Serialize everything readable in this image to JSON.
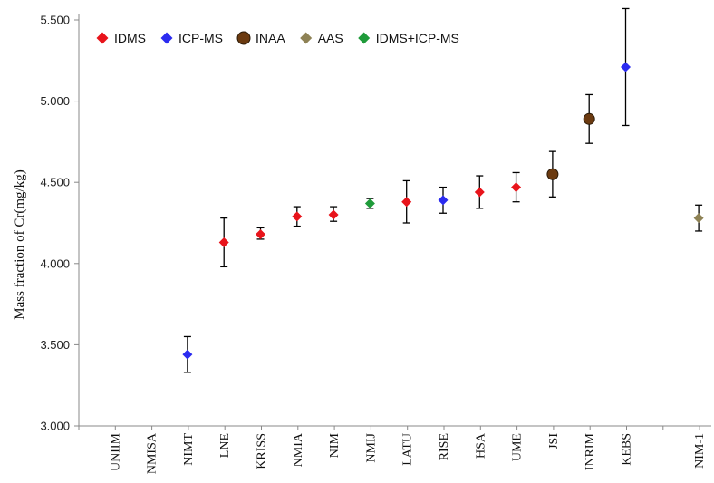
{
  "chart_data": {
    "type": "scatter",
    "title": "",
    "xlabel": "",
    "ylabel": "Mass fraction of Cr(mg/kg)",
    "ylim": [
      3.0,
      5.5
    ],
    "yticks": [
      "3.000",
      "3.500",
      "4.000",
      "4.500",
      "5.000",
      "5.500"
    ],
    "ytick_values": [
      3.0,
      3.5,
      4.0,
      4.5,
      5.0,
      5.5
    ],
    "grid": false,
    "legend_position": "top-left",
    "categories": [
      "UNIIM",
      "NMISA",
      "NIMT",
      "LNE",
      "KRISS",
      "NMIA",
      "NIM",
      "NMIJ",
      "LATU",
      "RISE",
      "HSA",
      "UME",
      "JSI",
      "INRIM",
      "KEBS",
      "NIM-1"
    ],
    "category_slots": [
      1,
      2,
      3,
      4,
      5,
      6,
      7,
      8,
      9,
      10,
      11,
      12,
      13,
      14,
      15,
      17
    ],
    "methods": [
      {
        "name": "IDMS",
        "color": "#e8141b",
        "shape": "diamond"
      },
      {
        "name": "ICP-MS",
        "color": "#2b2bf0",
        "shape": "diamond"
      },
      {
        "name": "INAA",
        "color": "#6b3a10",
        "shape": "circle"
      },
      {
        "name": "AAS",
        "color": "#8e8255",
        "shape": "diamond"
      },
      {
        "name": "IDMS+ICP-MS",
        "color": "#1f9b3a",
        "shape": "diamond"
      }
    ],
    "points": [
      {
        "lab": "NIMT",
        "method": "ICP-MS",
        "value": 3.44,
        "low": 3.33,
        "high": 3.55
      },
      {
        "lab": "LNE",
        "method": "IDMS",
        "value": 4.13,
        "low": 3.98,
        "high": 4.28
      },
      {
        "lab": "KRISS",
        "method": "IDMS",
        "value": 4.18,
        "low": 4.15,
        "high": 4.22
      },
      {
        "lab": "NMIA",
        "method": "IDMS",
        "value": 4.29,
        "low": 4.23,
        "high": 4.35
      },
      {
        "lab": "NIM",
        "method": "IDMS",
        "value": 4.3,
        "low": 4.26,
        "high": 4.35
      },
      {
        "lab": "NMIJ",
        "method": "IDMS+ICP-MS",
        "value": 4.37,
        "low": 4.34,
        "high": 4.4
      },
      {
        "lab": "LATU",
        "method": "IDMS",
        "value": 4.38,
        "low": 4.25,
        "high": 4.51
      },
      {
        "lab": "RISE",
        "method": "ICP-MS",
        "value": 4.39,
        "low": 4.31,
        "high": 4.47
      },
      {
        "lab": "HSA",
        "method": "IDMS",
        "value": 4.44,
        "low": 4.34,
        "high": 4.54
      },
      {
        "lab": "UME",
        "method": "IDMS",
        "value": 4.47,
        "low": 4.38,
        "high": 4.56
      },
      {
        "lab": "JSI",
        "method": "INAA",
        "value": 4.55,
        "low": 4.41,
        "high": 4.69
      },
      {
        "lab": "INRIM",
        "method": "INAA",
        "value": 4.89,
        "low": 4.74,
        "high": 5.04
      },
      {
        "lab": "KEBS",
        "method": "ICP-MS",
        "value": 5.21,
        "low": 4.85,
        "high": 5.57
      },
      {
        "lab": "NIM-1",
        "method": "AAS",
        "value": 4.28,
        "low": 4.2,
        "high": 4.36
      }
    ]
  }
}
